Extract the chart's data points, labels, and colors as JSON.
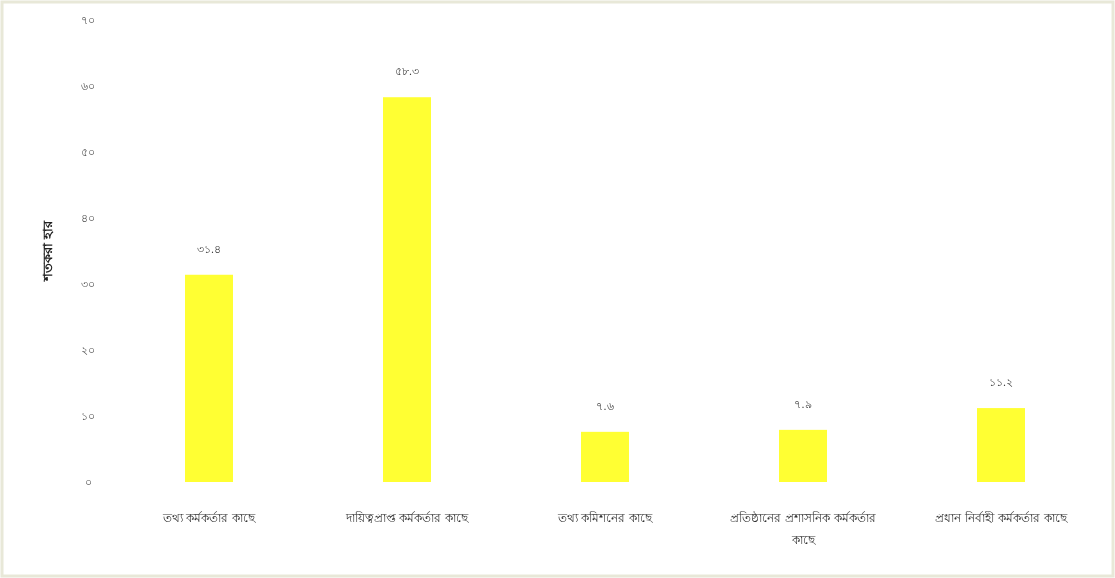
{
  "chart_data": {
    "type": "bar",
    "ylabel": "শতকরা হার",
    "categories": [
      "তথ্য কর্মকর্তার কাছে",
      "দায়িত্বপ্রাপ্ত কর্মকর্তার কাছে",
      "তথ্য কমিশনের কাছে",
      "প্রতিষ্ঠানের প্রশাসনিক কর্মকর্তার কাছে",
      "প্রধান নির্বাহী কর্মকর্তার কাছে"
    ],
    "values": [
      31.4,
      58.3,
      7.6,
      7.9,
      11.2
    ],
    "value_labels": [
      "৩১.৪",
      "৫৮.৩",
      "৭.৬",
      "৭.৯",
      "১১.২"
    ],
    "color": "#ffff33",
    "ylim": [
      0,
      70
    ],
    "yticks": [
      {
        "value": 0,
        "label": "০"
      },
      {
        "value": 10,
        "label": "১০"
      },
      {
        "value": 20,
        "label": "২০"
      },
      {
        "value": 30,
        "label": "৩০"
      },
      {
        "value": 40,
        "label": "৪০"
      },
      {
        "value": 50,
        "label": "৫০"
      },
      {
        "value": 60,
        "label": "৬০"
      },
      {
        "value": 70,
        "label": "৭০"
      }
    ],
    "grid": false
  }
}
